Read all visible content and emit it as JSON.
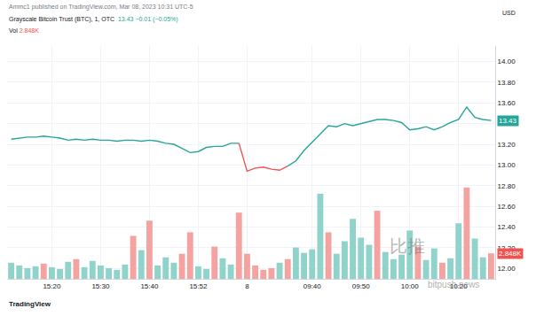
{
  "chart_data": {
    "type": "line",
    "header": {
      "publisher": "Ammc1 published on TradingView.com, Mar 08, 2023 10:31 UTC-5",
      "currency": "USD",
      "quote": "13.43 −0.01 (−0.05%)",
      "volume_quote": "2.848K",
      "branding": "TradingView",
      "watermark": [
        "比推",
        "bitpush.news"
      ]
    },
    "categories": [
      null,
      null,
      null,
      null,
      null,
      "15:20",
      null,
      null,
      null,
      null,
      null,
      "15:30",
      null,
      null,
      null,
      null,
      null,
      "15:40",
      null,
      null,
      null,
      null,
      null,
      "15:52",
      null,
      null,
      null,
      null,
      null,
      "8",
      null,
      null,
      null,
      null,
      null,
      null,
      null,
      "09:40",
      null,
      null,
      null,
      null,
      null,
      "09:50",
      null,
      null,
      null,
      null,
      null,
      "10:00",
      null,
      null,
      null,
      null,
      null,
      "10:20",
      null,
      null,
      null,
      null
    ],
    "series": [
      {
        "name": "Grayscale Bitcoin Trust (BTC), 1, OTC",
        "type": "line",
        "values": [
          13.25,
          13.26,
          13.27,
          13.27,
          13.28,
          13.27,
          13.26,
          13.24,
          13.25,
          13.24,
          13.25,
          13.24,
          13.24,
          13.23,
          13.24,
          13.24,
          13.23,
          13.24,
          13.23,
          13.21,
          13.2,
          13.16,
          13.12,
          13.13,
          13.17,
          13.18,
          13.18,
          13.21,
          13.21,
          12.94,
          12.97,
          12.98,
          12.96,
          12.95,
          12.99,
          13.04,
          13.14,
          13.22,
          13.3,
          13.38,
          13.37,
          13.4,
          13.38,
          13.4,
          13.42,
          13.44,
          13.44,
          13.43,
          13.41,
          13.34,
          13.35,
          13.37,
          13.34,
          13.37,
          13.41,
          13.44,
          13.56,
          13.46,
          13.44,
          13.43
        ],
        "colors": [
          "#26a69a",
          "#26a69a",
          "#26a69a",
          "#26a69a",
          "#26a69a",
          "#26a69a",
          "#26a69a",
          "#26a69a",
          "#26a69a",
          "#26a69a",
          "#26a69a",
          "#26a69a",
          "#26a69a",
          "#26a69a",
          "#26a69a",
          "#26a69a",
          "#26a69a",
          "#26a69a",
          "#26a69a",
          "#26a69a",
          "#26a69a",
          "#26a69a",
          "#26a69a",
          "#26a69a",
          "#26a69a",
          "#26a69a",
          "#26a69a",
          "#26a69a",
          "#26a69a",
          "#ef5350",
          "#ef5350",
          "#ef5350",
          "#ef5350",
          "#ef5350",
          "#ef5350",
          "#26a69a",
          "#26a69a",
          "#26a69a",
          "#26a69a",
          "#26a69a",
          "#26a69a",
          "#26a69a",
          "#26a69a",
          "#26a69a",
          "#26a69a",
          "#26a69a",
          "#26a69a",
          "#26a69a",
          "#26a69a",
          "#26a69a",
          "#26a69a",
          "#26a69a",
          "#26a69a",
          "#26a69a",
          "#26a69a",
          "#26a69a",
          "#26a69a",
          "#26a69a",
          "#26a69a",
          "#26a69a"
        ]
      },
      {
        "name": "Vol",
        "type": "bar",
        "axis": "y2",
        "values": [
          1800,
          1500,
          1200,
          1400,
          1700,
          1300,
          1100,
          1900,
          2200,
          1300,
          2000,
          1500,
          1200,
          1000,
          1600,
          4800,
          3200,
          6500,
          1500,
          2400,
          1800,
          2800,
          5200,
          1400,
          1100,
          3600,
          2300,
          1600,
          7400,
          2800,
          1500,
          1000,
          1200,
          1800,
          2200,
          3500,
          2900,
          3300,
          9500,
          5200,
          2800,
          4200,
          6700,
          4600,
          3800,
          7600,
          3000,
          2200,
          2700,
          5400,
          3600,
          2100,
          3400,
          1800,
          2300,
          6200,
          10200,
          4500,
          2400,
          2848
        ],
        "value_labels": [
          null,
          null,
          null,
          null,
          null,
          null,
          null,
          null,
          null,
          null,
          null,
          null,
          null,
          null,
          null,
          null,
          null,
          null,
          null,
          null,
          null,
          null,
          null,
          null,
          null,
          null,
          null,
          null,
          null,
          null,
          null,
          null,
          null,
          null,
          null,
          null,
          null,
          null,
          null,
          null,
          null,
          null,
          null,
          null,
          null,
          null,
          null,
          null,
          null,
          null,
          null,
          null,
          null,
          null,
          null,
          null,
          null,
          null,
          null,
          "2.848K"
        ],
        "colors": [
          "#8fd3cb",
          "#8fd3cb",
          "#8fd3cb",
          "#8fd3cb",
          "#f4a3a1",
          "#8fd3cb",
          "#8fd3cb",
          "#8fd3cb",
          "#f4a3a1",
          "#8fd3cb",
          "#8fd3cb",
          "#8fd3cb",
          "#8fd3cb",
          "#8fd3cb",
          "#8fd3cb",
          "#f4a3a1",
          "#8fd3cb",
          "#f4a3a1",
          "#8fd3cb",
          "#8fd3cb",
          "#8fd3cb",
          "#f4a3a1",
          "#f4a3a1",
          "#8fd3cb",
          "#8fd3cb",
          "#f4a3a1",
          "#8fd3cb",
          "#8fd3cb",
          "#f4a3a1",
          "#f4a3a1",
          "#f4a3a1",
          "#f4a3a1",
          "#f4a3a1",
          "#8fd3cb",
          "#f4a3a1",
          "#8fd3cb",
          "#8fd3cb",
          "#8fd3cb",
          "#8fd3cb",
          "#f4a3a1",
          "#8fd3cb",
          "#8fd3cb",
          "#8fd3cb",
          "#8fd3cb",
          "#8fd3cb",
          "#f4a3a1",
          "#8fd3cb",
          "#8fd3cb",
          "#8fd3cb",
          "#8fd3cb",
          "#f4a3a1",
          "#8fd3cb",
          "#8fd3cb",
          "#f4a3a1",
          "#8fd3cb",
          "#8fd3cb",
          "#f4a3a1",
          "#8fd3cb",
          "#8fd3cb",
          "#f4a3a1"
        ]
      }
    ],
    "ylim": [
      11.9,
      14.15
    ],
    "yticks": [
      {
        "value": 12,
        "label": "12.00"
      },
      {
        "value": 12.2,
        "label": "12.20"
      },
      {
        "value": 12.4,
        "label": "12.40"
      },
      {
        "value": 12.6,
        "label": "12.60"
      },
      {
        "value": 12.8,
        "label": "12.80"
      },
      {
        "value": 13,
        "label": "13.00"
      },
      {
        "value": 13.2,
        "label": "13.20"
      },
      {
        "value": 13.4,
        "label": "13.40"
      },
      {
        "value": 13.6,
        "label": "13.60"
      },
      {
        "value": 13.8,
        "label": "13.80"
      },
      {
        "value": 14,
        "label": "14.00"
      }
    ],
    "y2lim": [
      0,
      26000
    ],
    "y2ticks": [],
    "grid": true
  }
}
